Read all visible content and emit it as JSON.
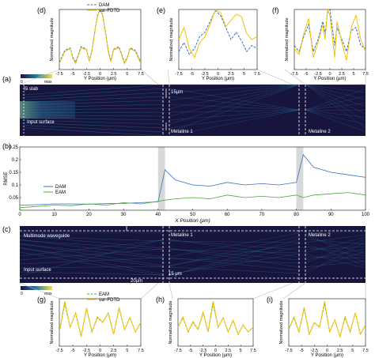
{
  "colors": {
    "dam": "#3a6fc4",
    "eam": "#4ea63a",
    "fdtd": "#f2c300",
    "field_dark": "#17153d",
    "field_mid": "#2a6f9a",
    "field_bright": "#7fd0a0"
  },
  "chart_data": [
    {
      "id": "d",
      "type": "line",
      "panel_label": "(d)",
      "xlabel": "Y Position (μm)",
      "ylabel": "Normalized magnitude",
      "xlim": [
        -7.5,
        7.5
      ],
      "xticks": [
        "-7.5",
        "-5",
        "-2.5",
        "0",
        "2.5",
        "5",
        "7.5"
      ],
      "series": [
        {
          "name": "DAM",
          "style": "dashed",
          "x": [
            -7.5,
            -6.5,
            -5.5,
            -5,
            -4.5,
            -3.5,
            -2.5,
            -2,
            -1.5,
            -1,
            -0.5,
            0,
            0.5,
            1,
            1.5,
            2,
            2.5,
            3.5,
            4.5,
            5,
            5.5,
            6.5,
            7.5
          ],
          "y": [
            0.12,
            0.32,
            0.36,
            0.2,
            0.12,
            0.38,
            0.34,
            0.15,
            0.32,
            0.62,
            0.9,
            1.0,
            0.9,
            0.62,
            0.32,
            0.15,
            0.34,
            0.38,
            0.12,
            0.2,
            0.36,
            0.32,
            0.12
          ]
        },
        {
          "name": "var-FDTD",
          "style": "solid",
          "x": [
            -7.5,
            -6.5,
            -5.5,
            -5,
            -4.5,
            -3.5,
            -2.5,
            -2,
            -1.5,
            -1,
            -0.5,
            0,
            0.5,
            1,
            1.5,
            2,
            2.5,
            3.5,
            4.5,
            5,
            5.5,
            6.5,
            7.5
          ],
          "y": [
            0.1,
            0.3,
            0.35,
            0.18,
            0.1,
            0.36,
            0.33,
            0.13,
            0.3,
            0.6,
            0.88,
            1.0,
            0.88,
            0.6,
            0.3,
            0.13,
            0.33,
            0.36,
            0.1,
            0.18,
            0.35,
            0.3,
            0.1
          ]
        }
      ]
    },
    {
      "id": "e",
      "type": "line",
      "panel_label": "(e)",
      "xlabel": "Y Position (μm)",
      "ylabel": "Normalized magnitude",
      "xlim": [
        -7.5,
        7.5
      ],
      "xticks": [
        "-7.5",
        "-5",
        "-2.5",
        "0",
        "2.5",
        "5",
        "7.5"
      ],
      "series": [
        {
          "name": "DAM",
          "style": "dashed",
          "x": [
            -7.5,
            -6.5,
            -5.5,
            -4.5,
            -3.5,
            -2.5,
            -1.5,
            -0.5,
            0.5,
            1.5,
            2.5,
            3.5,
            4.5,
            5.5,
            6.5,
            7.5
          ],
          "y": [
            0.3,
            0.45,
            0.25,
            0.35,
            0.55,
            0.62,
            0.8,
            0.98,
            0.9,
            0.7,
            0.5,
            0.62,
            0.48,
            0.3,
            0.4,
            0.35
          ]
        },
        {
          "name": "var-FDTD",
          "style": "solid",
          "x": [
            -7.5,
            -6.5,
            -5.5,
            -4.5,
            -3.5,
            -2.5,
            -1.5,
            -0.5,
            0.5,
            1.5,
            2.5,
            3.5,
            4.5,
            5.5,
            6.5,
            7.5
          ],
          "y": [
            0.5,
            0.7,
            0.35,
            0.2,
            0.45,
            0.55,
            0.75,
            1.0,
            0.95,
            0.72,
            0.82,
            0.92,
            0.88,
            0.6,
            0.5,
            0.55
          ]
        }
      ]
    },
    {
      "id": "f",
      "type": "line",
      "panel_label": "(f)",
      "xlabel": "Y Position (μm)",
      "ylabel": "Normalized magnitude",
      "xlim": [
        -7.5,
        7.5
      ],
      "xticks": [
        "-7.5",
        "-5",
        "-2.5",
        "0",
        "2.5",
        "5",
        "7.5"
      ],
      "series": [
        {
          "name": "DAM",
          "style": "dashed",
          "x": [
            -7.5,
            -6.5,
            -5.5,
            -4.5,
            -3.5,
            -2.5,
            -1.5,
            -1,
            -0.5,
            0,
            0.5,
            1,
            1.5,
            2.5,
            3.5,
            4.5,
            5.5,
            6.5,
            7.5
          ],
          "y": [
            0.4,
            0.3,
            0.55,
            0.75,
            0.3,
            0.5,
            0.8,
            0.6,
            0.95,
            1.0,
            0.7,
            0.4,
            0.7,
            0.5,
            0.3,
            0.65,
            0.7,
            0.4,
            0.35
          ]
        },
        {
          "name": "var-FDTD",
          "style": "solid",
          "x": [
            -7.5,
            -6.5,
            -5.5,
            -4.5,
            -3.5,
            -2.5,
            -1.5,
            -1,
            -0.5,
            0,
            0.5,
            1,
            1.5,
            2.5,
            3.5,
            4.5,
            5.5,
            6.5,
            7.5
          ],
          "y": [
            0.35,
            0.25,
            0.6,
            0.85,
            0.2,
            0.45,
            0.75,
            0.5,
            1.0,
            0.9,
            0.55,
            0.2,
            0.8,
            0.45,
            0.15,
            0.7,
            0.9,
            0.5,
            0.3
          ]
        }
      ]
    },
    {
      "id": "b",
      "type": "line",
      "panel_label": "(b)",
      "xlabel": "X Position (μm)",
      "ylabel": "RMSE",
      "xlim": [
        0,
        100
      ],
      "ylim": [
        0,
        0.25
      ],
      "xticks": [
        "0",
        "10",
        "20",
        "30",
        "40",
        "50",
        "60",
        "70",
        "80",
        "90",
        "100"
      ],
      "yticks": [
        "0.05",
        "0.1",
        "0.15",
        "0.2",
        "0.25"
      ],
      "shaded_x": [
        [
          40,
          42
        ],
        [
          80,
          82
        ]
      ],
      "series": [
        {
          "name": "DAM",
          "x": [
            0,
            5,
            10,
            15,
            20,
            25,
            30,
            35,
            40,
            42,
            45,
            50,
            55,
            60,
            65,
            70,
            75,
            80,
            82,
            85,
            90,
            95,
            100
          ],
          "y": [
            0.02,
            0.022,
            0.025,
            0.025,
            0.024,
            0.026,
            0.027,
            0.03,
            0.033,
            0.16,
            0.12,
            0.1,
            0.095,
            0.11,
            0.1,
            0.105,
            0.1,
            0.11,
            0.22,
            0.17,
            0.15,
            0.14,
            0.13
          ]
        },
        {
          "name": "EAM",
          "x": [
            0,
            5,
            10,
            15,
            20,
            25,
            30,
            35,
            40,
            42,
            45,
            50,
            55,
            60,
            65,
            70,
            75,
            80,
            82,
            85,
            90,
            95,
            100
          ],
          "y": [
            0.01,
            0.015,
            0.02,
            0.018,
            0.025,
            0.02,
            0.03,
            0.025,
            0.035,
            0.04,
            0.045,
            0.05,
            0.045,
            0.06,
            0.05,
            0.055,
            0.05,
            0.06,
            0.05,
            0.06,
            0.065,
            0.07,
            0.06
          ]
        }
      ]
    },
    {
      "id": "g",
      "type": "line",
      "panel_label": "(g)",
      "xlabel": "Y Position (μm)",
      "ylabel": "Normalized magnitude",
      "xlim": [
        -7.5,
        7.5
      ],
      "xticks": [
        "-7.5",
        "-5",
        "-2.5",
        "0",
        "2.5",
        "5",
        "7.5"
      ],
      "series": [
        {
          "name": "EAM",
          "style": "dashed",
          "x": [
            -7.5,
            -6.5,
            -5.5,
            -4.5,
            -3.5,
            -2.5,
            -1.5,
            -0.5,
            0.5,
            1.5,
            2.5,
            3.5,
            4.5,
            5.5,
            6.5,
            7.5
          ],
          "y": [
            0.3,
            0.9,
            0.4,
            0.7,
            0.2,
            0.8,
            0.3,
            0.6,
            0.5,
            0.7,
            0.25,
            0.8,
            0.35,
            0.6,
            0.3,
            0.5
          ]
        },
        {
          "name": "var-FDTD",
          "style": "solid",
          "x": [
            -7.5,
            -6.5,
            -5.5,
            -4.5,
            -3.5,
            -2.5,
            -1.5,
            -0.5,
            0.5,
            1.5,
            2.5,
            3.5,
            4.5,
            5.5,
            6.5,
            7.5
          ],
          "y": [
            0.3,
            0.95,
            0.4,
            0.7,
            0.2,
            0.8,
            0.3,
            0.62,
            0.5,
            0.7,
            0.25,
            0.82,
            0.35,
            0.6,
            0.3,
            0.5
          ]
        }
      ]
    },
    {
      "id": "h",
      "type": "line",
      "panel_label": "(h)",
      "xlabel": "Y Position (μm)",
      "ylabel": "Normalized magnitude",
      "xlim": [
        -7.5,
        7.5
      ],
      "xticks": [
        "-7.5",
        "-5",
        "-2.5",
        "0",
        "2.5",
        "5",
        "7.5"
      ],
      "series": [
        {
          "name": "EAM",
          "style": "dashed",
          "x": [
            -7.5,
            -6.5,
            -5.5,
            -4.5,
            -3.5,
            -2.5,
            -1.5,
            -0.5,
            0.5,
            1.5,
            2.5,
            3.5,
            4.5,
            5.5,
            6.5,
            7.5
          ],
          "y": [
            0.4,
            0.6,
            0.3,
            0.5,
            0.35,
            0.7,
            0.3,
            0.9,
            0.4,
            0.6,
            0.3,
            0.55,
            0.25,
            0.45,
            0.3,
            0.4
          ]
        },
        {
          "name": "var-FDTD",
          "style": "solid",
          "x": [
            -7.5,
            -6.5,
            -5.5,
            -4.5,
            -3.5,
            -2.5,
            -1.5,
            -0.5,
            0.5,
            1.5,
            2.5,
            3.5,
            4.5,
            5.5,
            6.5,
            7.5
          ],
          "y": [
            0.4,
            0.62,
            0.3,
            0.52,
            0.35,
            0.72,
            0.3,
            0.95,
            0.4,
            0.6,
            0.3,
            0.55,
            0.25,
            0.45,
            0.3,
            0.4
          ]
        }
      ]
    },
    {
      "id": "i",
      "type": "line",
      "panel_label": "(i)",
      "xlabel": "Y Position (μm)",
      "ylabel": "Normalized magnitude",
      "xlim": [
        -7.5,
        7.5
      ],
      "xticks": [
        "-7.5",
        "-5",
        "-2.5",
        "0",
        "2.5",
        "5",
        "7.5"
      ],
      "series": [
        {
          "name": "EAM",
          "style": "dashed",
          "x": [
            -7.5,
            -6.5,
            -5.5,
            -4.5,
            -3.5,
            -2.5,
            -1.5,
            -0.5,
            0.5,
            1.5,
            2.5,
            3.5,
            4.5,
            5.5,
            6.5,
            7.5
          ],
          "y": [
            0.35,
            0.6,
            0.3,
            0.8,
            0.25,
            0.5,
            0.4,
            0.9,
            0.3,
            0.55,
            0.2,
            0.6,
            0.3,
            0.7,
            0.25,
            0.45
          ]
        },
        {
          "name": "var-FDTD",
          "style": "solid",
          "x": [
            -7.5,
            -6.5,
            -5.5,
            -4.5,
            -3.5,
            -2.5,
            -1.5,
            -0.5,
            0.5,
            1.5,
            2.5,
            3.5,
            4.5,
            5.5,
            6.5,
            7.5
          ],
          "y": [
            0.35,
            0.62,
            0.3,
            0.82,
            0.25,
            0.5,
            0.4,
            0.95,
            0.3,
            0.55,
            0.2,
            0.62,
            0.3,
            0.7,
            0.25,
            0.45
          ]
        }
      ]
    }
  ],
  "field_maps": {
    "a": {
      "panel_label": "(a)",
      "colorbar_min": "0",
      "colorbar_max": "max",
      "labels": [
        "Si slab",
        "Input surface",
        "15μm",
        "Metaline 1",
        "Metaline 2"
      ]
    },
    "c": {
      "panel_label": "(c)",
      "colorbar_min": "0",
      "colorbar_max": "max",
      "labels": [
        "Multimode waveguide",
        "Input surface",
        "Metaline 1",
        "15 μm",
        "Metaline 2",
        "20μm"
      ]
    }
  }
}
